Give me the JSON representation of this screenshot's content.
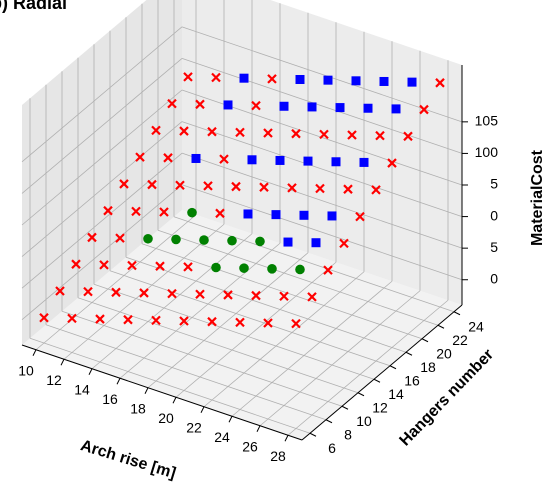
{
  "chart_data": {
    "type": "scatter3d",
    "title": "b) Radial",
    "x_label": "Arch rise [m]",
    "y_label": "Hangers number",
    "z_label": "MaterialCost",
    "xlim": [
      9,
      29
    ],
    "xticks": [
      10,
      12,
      14,
      16,
      18,
      20,
      22,
      24,
      26,
      28
    ],
    "ylim": [
      5,
      25
    ],
    "yticks": [
      6,
      8,
      10,
      12,
      14,
      16,
      18,
      20,
      22,
      24
    ],
    "zlim": [
      76,
      114
    ],
    "zticks": [
      {
        "value": 80,
        "label": "0"
      },
      {
        "value": 85,
        "label": "5"
      },
      {
        "value": 90,
        "label": "0"
      },
      {
        "value": 95,
        "label": "5"
      },
      100,
      105
    ],
    "grid": true,
    "series": [
      {
        "color": "#ff0000",
        "marker": "x",
        "x": [
          10,
          12,
          14,
          16,
          18,
          20,
          22,
          24,
          26,
          28,
          10,
          12,
          14,
          16,
          18,
          20,
          22,
          24,
          26,
          28,
          10,
          12,
          14,
          16,
          18,
          28,
          10,
          12,
          28,
          10,
          12,
          14,
          18,
          28,
          10,
          12,
          14,
          16,
          18,
          20,
          22,
          24,
          26,
          28,
          10,
          12,
          16,
          28,
          10,
          12,
          14,
          16,
          18,
          20,
          22,
          24,
          26,
          28,
          10,
          12,
          16,
          28,
          10,
          12,
          16,
          28
        ],
        "y": [
          6,
          6,
          6,
          6,
          6,
          6,
          6,
          6,
          6,
          6,
          8,
          8,
          8,
          8,
          8,
          8,
          8,
          8,
          8,
          8,
          10,
          10,
          10,
          10,
          10,
          10,
          12,
          12,
          12,
          14,
          14,
          14,
          14,
          14,
          16,
          16,
          16,
          16,
          16,
          16,
          16,
          16,
          16,
          16,
          18,
          18,
          18,
          18,
          20,
          20,
          20,
          20,
          20,
          20,
          20,
          20,
          20,
          20,
          22,
          22,
          22,
          22,
          24,
          24,
          24,
          24
        ],
        "z": [
          80,
          81.4,
          82.8,
          84.2,
          85.6,
          87,
          88.4,
          89.8,
          91.2,
          92.6,
          82.1,
          83.5,
          84.9,
          86.3,
          87.7,
          89.1,
          90.5,
          91.9,
          93.3,
          94.7,
          84.2,
          85.6,
          87,
          88.4,
          89.8,
          96.8,
          86.3,
          87.7,
          98.9,
          88.4,
          89.8,
          91.2,
          94,
          101,
          90.5,
          91.9,
          93.3,
          94.7,
          96.1,
          97.5,
          98.9,
          100.3,
          101.7,
          103.1,
          92.6,
          94,
          96.8,
          105.2,
          94.7,
          96.1,
          97.5,
          98.9,
          100.3,
          101.7,
          103.1,
          104.5,
          105.9,
          107.3,
          96.8,
          98.2,
          101,
          109.4,
          98.9,
          100.3,
          103.1,
          111.5
        ]
      },
      {
        "color": "#0000ff",
        "marker": "s",
        "x": [
          24,
          26,
          20,
          22,
          24,
          26,
          14,
          18,
          20,
          22,
          24,
          26,
          14,
          18,
          20,
          22,
          24,
          26,
          14,
          18,
          20,
          22,
          24,
          26
        ],
        "y": [
          12,
          12,
          14,
          14,
          14,
          14,
          18,
          18,
          18,
          18,
          18,
          18,
          22,
          22,
          22,
          22,
          22,
          22,
          24,
          24,
          24,
          24,
          24,
          24
        ],
        "z": [
          96.1,
          97.5,
          95.4,
          96.8,
          98.2,
          99.6,
          95.4,
          98.2,
          99.6,
          101,
          102.4,
          103.8,
          99.6,
          102.4,
          103.8,
          105.2,
          106.6,
          108,
          101.7,
          104.5,
          105.9,
          107.3,
          108.7,
          110.1
        ]
      },
      {
        "color": "#008000",
        "marker": "o",
        "x": [
          20,
          22,
          24,
          26,
          14,
          16,
          18,
          20,
          22,
          16
        ],
        "y": [
          10,
          10,
          10,
          10,
          12,
          12,
          12,
          12,
          12,
          14
        ],
        "z": [
          91.2,
          92.6,
          94,
          95.4,
          89.1,
          90.5,
          91.9,
          93.3,
          94.7,
          92.6
        ]
      }
    ]
  }
}
